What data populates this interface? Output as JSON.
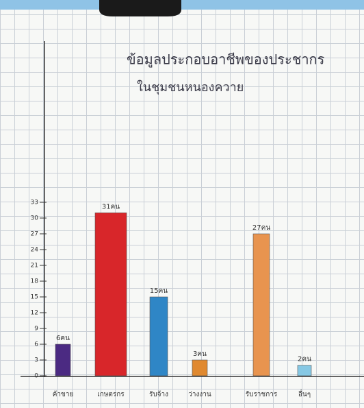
{
  "chart_data": {
    "type": "bar",
    "title": "ข้อมูลประกอบอาชีพของประชากร",
    "subtitle": "ในชุมชนหนองควาย",
    "categories": [
      "ค้าขาย",
      "เกษตรกร",
      "รับจ้าง",
      "ว่างงาน",
      "รับราชการ",
      "อื่นๆ"
    ],
    "values": [
      6,
      31,
      15,
      3,
      27,
      2
    ],
    "value_labels": [
      "6คน",
      "31คน",
      "15คน",
      "3คน",
      "27คน",
      "2คน"
    ],
    "colors": [
      "#4b2a82",
      "#d8262a",
      "#2f86c6",
      "#e0892f",
      "#e8944f",
      "#86c8e4"
    ],
    "ylim": [
      0,
      33
    ],
    "yticks": [
      0,
      3,
      6,
      9,
      12,
      15,
      18,
      21,
      24,
      27,
      30,
      33
    ]
  }
}
